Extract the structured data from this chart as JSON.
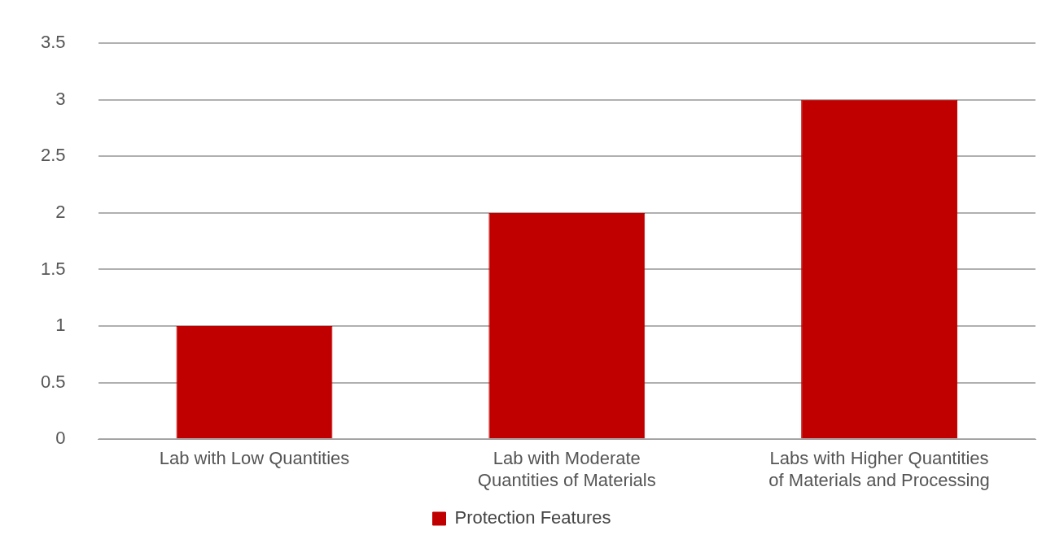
{
  "chart_data": {
    "type": "bar",
    "categories": [
      "Lab with Low Quantities",
      "Lab with Moderate Quantities of Materials",
      "Labs with Higher Quantities of Materials and Processing"
    ],
    "series": [
      {
        "name": "Protection Features",
        "color": "#c00000",
        "values": [
          1,
          2,
          3
        ]
      }
    ],
    "ylim": [
      0,
      3.5
    ],
    "yticks": [
      0,
      0.5,
      1,
      1.5,
      2,
      2.5,
      3,
      3.5
    ],
    "grid": "y",
    "legend": "bottom"
  }
}
